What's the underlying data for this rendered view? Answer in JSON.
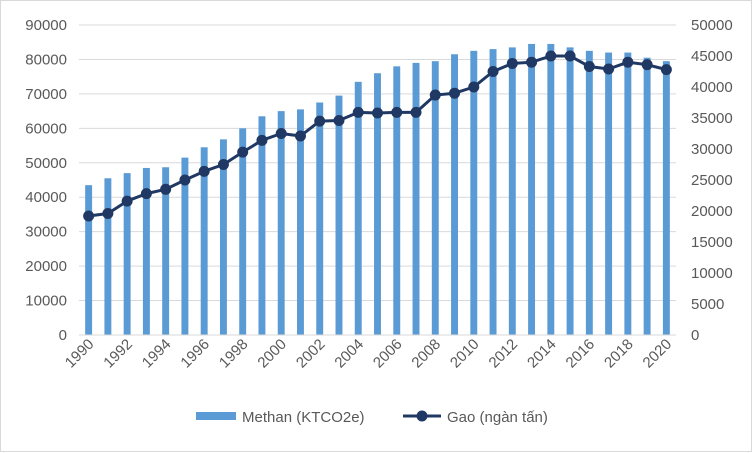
{
  "chart_data": {
    "type": "bar+line",
    "x": [
      1990,
      1991,
      1992,
      1993,
      1994,
      1995,
      1996,
      1997,
      1998,
      1999,
      2000,
      2001,
      2002,
      2003,
      2004,
      2005,
      2006,
      2007,
      2008,
      2009,
      2010,
      2011,
      2012,
      2013,
      2014,
      2015,
      2016,
      2017,
      2018,
      2019,
      2020
    ],
    "x_tick_labels": [
      "1990",
      "1992",
      "1994",
      "1996",
      "1998",
      "2000",
      "2002",
      "2004",
      "2006",
      "2008",
      "2010",
      "2012",
      "2014",
      "2016",
      "2018",
      "2020"
    ],
    "series": [
      {
        "name": "Methan (KTCO2e)",
        "kind": "bar",
        "axis": "left",
        "color": "#5b9bd5",
        "values": [
          43500,
          45500,
          47000,
          48500,
          48700,
          51500,
          54500,
          56800,
          60000,
          63500,
          65000,
          65500,
          67500,
          69500,
          73500,
          76000,
          78000,
          79000,
          79500,
          81500,
          82500,
          83000,
          83500,
          84500,
          84500,
          83500,
          82500,
          82000,
          82000,
          80500,
          79500
        ]
      },
      {
        "name": "Gao (ngàn tấn)",
        "kind": "line",
        "axis": "right",
        "color": "#203864",
        "values": [
          19200,
          19600,
          21600,
          22800,
          23500,
          25000,
          26400,
          27500,
          29500,
          31400,
          32500,
          32100,
          34500,
          34600,
          35900,
          35800,
          35900,
          35900,
          38700,
          39000,
          40000,
          42500,
          43800,
          44000,
          45000,
          45000,
          43300,
          42900,
          44000,
          43600,
          42800
        ]
      }
    ],
    "y_left": {
      "min": 0,
      "max": 90000,
      "step": 10000
    },
    "y_right": {
      "min": 0,
      "max": 50000,
      "step": 5000
    },
    "grid": true,
    "legend_position": "bottom",
    "title": "",
    "xlabel": "",
    "ylabel": ""
  }
}
